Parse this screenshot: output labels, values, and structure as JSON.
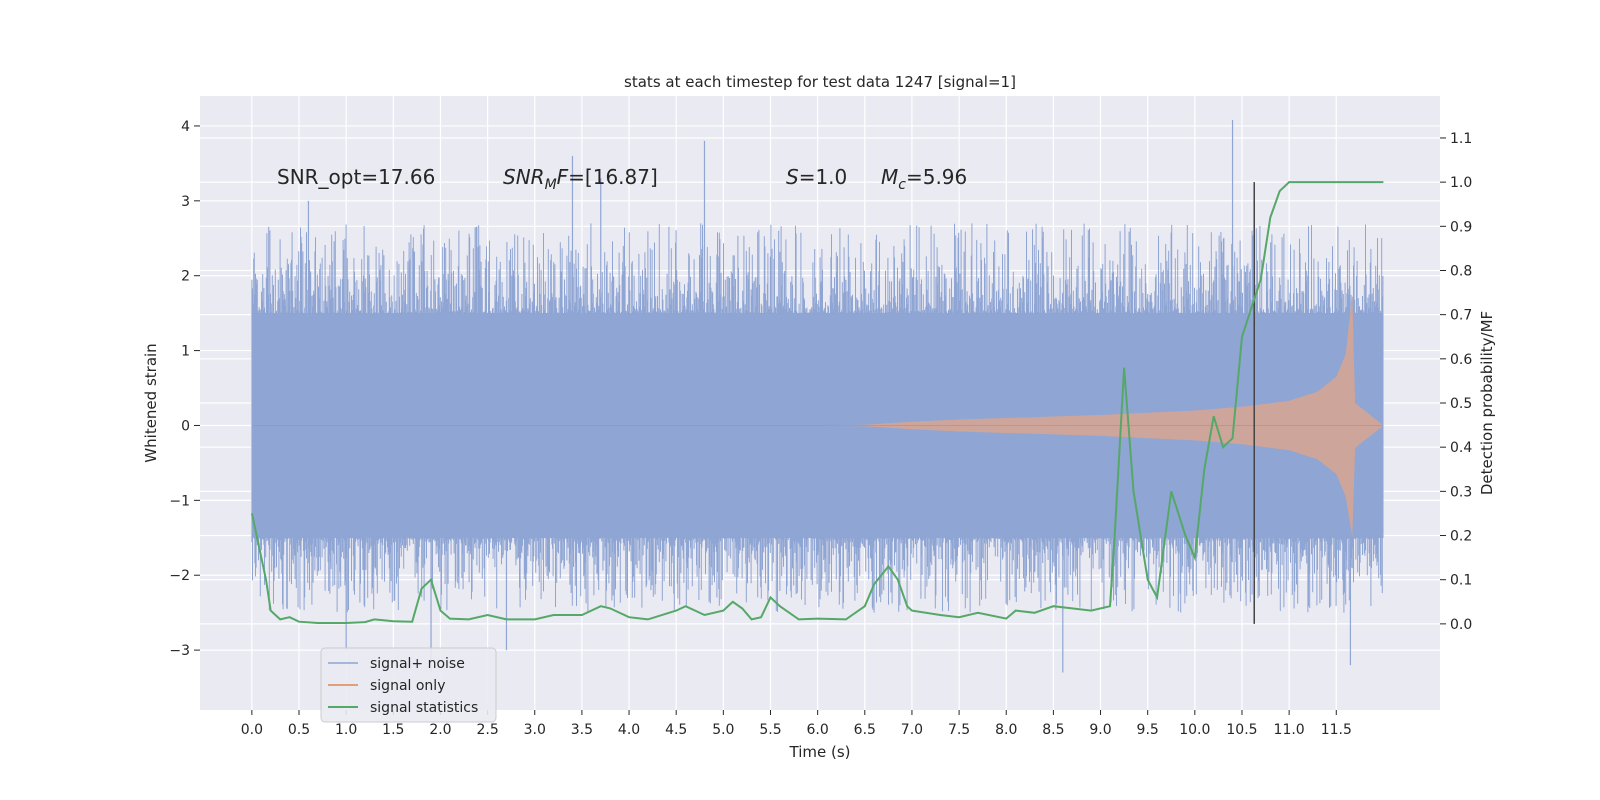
{
  "chart_data": {
    "type": "line",
    "title": "stats at each timestep for test data 1247 [signal=1]",
    "xlabel": "Time (s)",
    "ylabel": "Whitened strain",
    "y2label": "Detection probability/MF",
    "xlim": [
      -0.55,
      12.6
    ],
    "ylim": [
      -3.8,
      4.4
    ],
    "y2lim": [
      -0.195,
      1.195
    ],
    "x_ticks": [
      "0.0",
      "0.5",
      "1.0",
      "1.5",
      "2.0",
      "2.5",
      "3.0",
      "3.5",
      "4.0",
      "4.5",
      "5.0",
      "5.5",
      "6.0",
      "6.5",
      "7.0",
      "7.5",
      "8.0",
      "8.5",
      "9.0",
      "9.5",
      "10.0",
      "10.5",
      "11.0",
      "11.5"
    ],
    "y_ticks": [
      "−3",
      "−2",
      "−1",
      "0",
      "1",
      "2",
      "3",
      "4"
    ],
    "y2_ticks": [
      "0.0",
      "0.1",
      "0.2",
      "0.3",
      "0.4",
      "0.5",
      "0.6",
      "0.7",
      "0.8",
      "0.9",
      "1.0",
      "1.1"
    ],
    "grid": true,
    "legend_position": "lower-left",
    "annotations": [
      {
        "plain": "SNR_opt=17.66"
      },
      {
        "italic": "SNR",
        "sub": "M",
        "italic2": "F",
        "plain": "=[16.87]"
      },
      {
        "italic": "S",
        "plain": "=1.0"
      },
      {
        "italic": "M",
        "sub": "c",
        "plain": "=5.96"
      }
    ],
    "vertical_marker_x": 10.63,
    "series": [
      {
        "name": "signal+ noise",
        "color": "#8fa5d3",
        "axis": "left",
        "description_values": {
          "x_range": [
            0.0,
            12.0
          ],
          "envelope_upper_typical": 1.5,
          "envelope_lower_typical": -1.5,
          "max": 4.08,
          "min": -3.3
        }
      },
      {
        "name": "signal only",
        "color": "#dd8452",
        "axis": "left",
        "amplitude_points": [
          [
            0.0,
            0.0
          ],
          [
            6.0,
            0.0
          ],
          [
            6.5,
            0.01
          ],
          [
            7.0,
            0.05
          ],
          [
            7.5,
            0.08
          ],
          [
            8.0,
            0.1
          ],
          [
            8.5,
            0.12
          ],
          [
            9.0,
            0.14
          ],
          [
            9.5,
            0.17
          ],
          [
            10.0,
            0.2
          ],
          [
            10.5,
            0.25
          ],
          [
            11.0,
            0.33
          ],
          [
            11.3,
            0.45
          ],
          [
            11.5,
            0.65
          ],
          [
            11.6,
            0.95
          ],
          [
            11.67,
            1.75
          ],
          [
            11.7,
            0.3
          ],
          [
            12.0,
            0.0
          ]
        ]
      },
      {
        "name": "signal statistics",
        "color": "#55a868",
        "axis": "right",
        "points": [
          [
            0.0,
            0.25
          ],
          [
            0.05,
            0.2
          ],
          [
            0.1,
            0.15
          ],
          [
            0.15,
            0.1
          ],
          [
            0.2,
            0.03
          ],
          [
            0.3,
            0.01
          ],
          [
            0.4,
            0.015
          ],
          [
            0.5,
            0.005
          ],
          [
            0.7,
            0.002
          ],
          [
            1.0,
            0.002
          ],
          [
            1.2,
            0.004
          ],
          [
            1.3,
            0.01
          ],
          [
            1.5,
            0.006
          ],
          [
            1.7,
            0.005
          ],
          [
            1.8,
            0.08
          ],
          [
            1.9,
            0.1
          ],
          [
            2.0,
            0.03
          ],
          [
            2.1,
            0.012
          ],
          [
            2.3,
            0.01
          ],
          [
            2.5,
            0.02
          ],
          [
            2.7,
            0.01
          ],
          [
            3.0,
            0.01
          ],
          [
            3.2,
            0.02
          ],
          [
            3.5,
            0.02
          ],
          [
            3.7,
            0.04
          ],
          [
            3.8,
            0.035
          ],
          [
            4.0,
            0.015
          ],
          [
            4.2,
            0.01
          ],
          [
            4.5,
            0.03
          ],
          [
            4.6,
            0.04
          ],
          [
            4.8,
            0.02
          ],
          [
            5.0,
            0.03
          ],
          [
            5.1,
            0.05
          ],
          [
            5.2,
            0.035
          ],
          [
            5.3,
            0.01
          ],
          [
            5.4,
            0.015
          ],
          [
            5.5,
            0.06
          ],
          [
            5.6,
            0.04
          ],
          [
            5.8,
            0.01
          ],
          [
            6.0,
            0.012
          ],
          [
            6.3,
            0.01
          ],
          [
            6.5,
            0.04
          ],
          [
            6.6,
            0.09
          ],
          [
            6.75,
            0.13
          ],
          [
            6.85,
            0.1
          ],
          [
            6.95,
            0.04
          ],
          [
            7.0,
            0.03
          ],
          [
            7.3,
            0.02
          ],
          [
            7.5,
            0.015
          ],
          [
            7.7,
            0.025
          ],
          [
            8.0,
            0.012
          ],
          [
            8.1,
            0.03
          ],
          [
            8.3,
            0.025
          ],
          [
            8.5,
            0.04
          ],
          [
            8.7,
            0.035
          ],
          [
            8.9,
            0.03
          ],
          [
            9.1,
            0.04
          ],
          [
            9.15,
            0.2
          ],
          [
            9.25,
            0.58
          ],
          [
            9.35,
            0.3
          ],
          [
            9.5,
            0.1
          ],
          [
            9.6,
            0.06
          ],
          [
            9.75,
            0.3
          ],
          [
            9.9,
            0.2
          ],
          [
            10.0,
            0.15
          ],
          [
            10.1,
            0.35
          ],
          [
            10.2,
            0.47
          ],
          [
            10.3,
            0.4
          ],
          [
            10.4,
            0.42
          ],
          [
            10.5,
            0.65
          ],
          [
            10.7,
            0.78
          ],
          [
            10.8,
            0.92
          ],
          [
            10.9,
            0.98
          ],
          [
            11.0,
            1.0
          ],
          [
            11.5,
            1.0
          ],
          [
            12.0,
            1.0
          ]
        ]
      }
    ]
  }
}
